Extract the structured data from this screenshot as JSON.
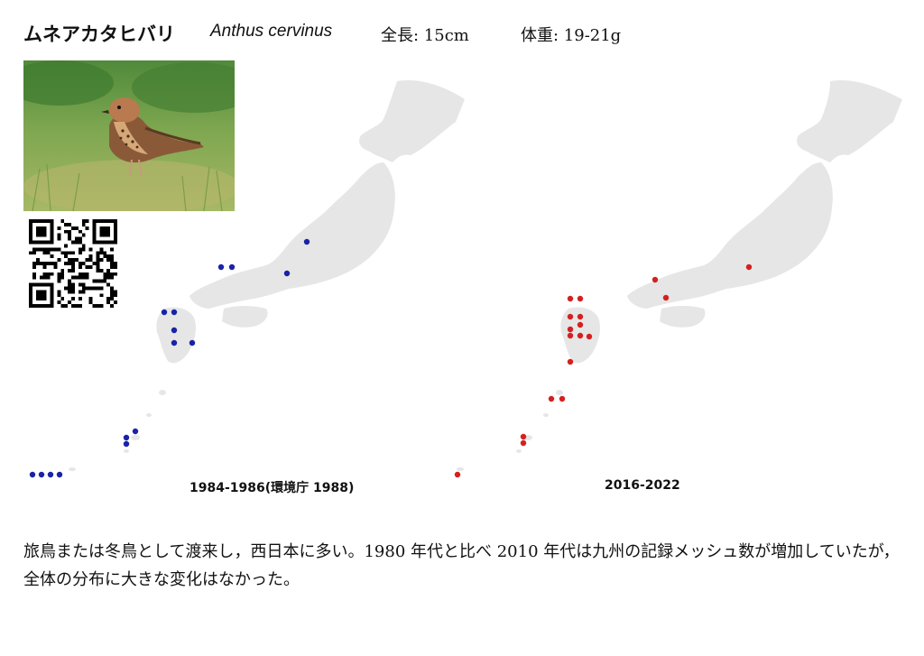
{
  "header": {
    "japanese_name": "ムネアカタヒバリ",
    "scientific_name": "Anthus cervinus",
    "length": "全長: 15cm",
    "weight": "体重: 19-21g"
  },
  "photo": {
    "subject_icon": "pipit-bird-photo"
  },
  "qr": {
    "icon": "qr-code-icon"
  },
  "map_colors": {
    "land": "#e6e6e6",
    "period_1": "#1a22a8",
    "period_2": "#d42020"
  },
  "maps": [
    {
      "period_label": "1984-1986(環境庁 1988)",
      "records": 17
    },
    {
      "period_label": "2016-2022",
      "records": 19
    }
  ],
  "description": "旅鳥または冬鳥として渡来し，西日本に多い。1980 年代と比べ 2010 年代は九州の記録メッシュ数が増加していたが，全体の分布に大きな変化はなかった。"
}
